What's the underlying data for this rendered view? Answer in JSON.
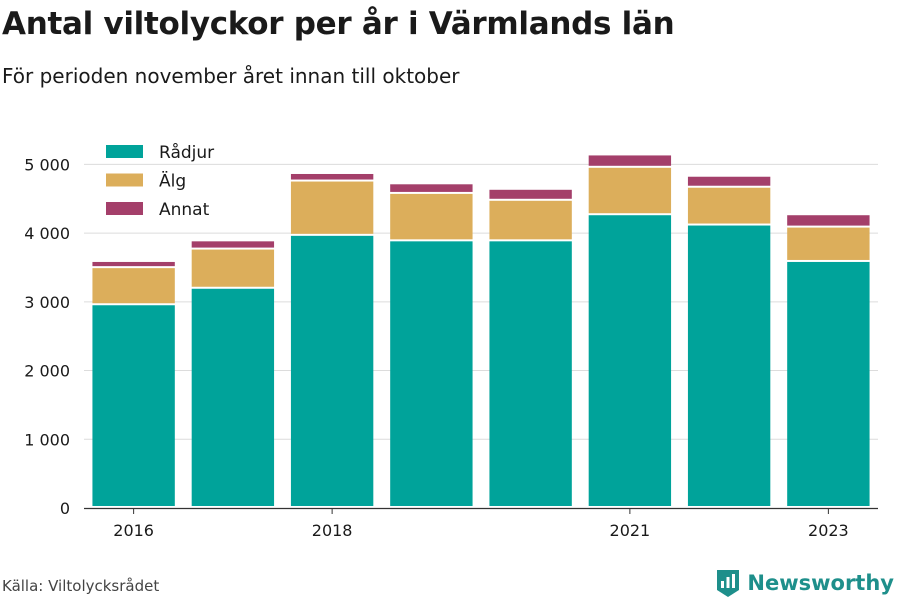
{
  "title": "Antal viltolyckor per år i Värmlands län",
  "subtitle": "För perioden november året innan till oktober",
  "source": "Källa: Viltolycksrådet",
  "brand": "Newsworthy",
  "colors": {
    "radjur": "#00a39a",
    "alg": "#dcae5b",
    "annat": "#a43f6a",
    "grid": "#dcdcdc",
    "brand": "#1e8f8b"
  },
  "chart_data": {
    "type": "bar",
    "stacked": true,
    "categories": [
      "2016",
      "2017",
      "2018",
      "2019",
      "2020",
      "2021",
      "2022",
      "2023"
    ],
    "x_tick_labels": [
      "2016",
      "",
      "2018",
      "",
      "",
      "2021",
      "",
      "2023"
    ],
    "series": [
      {
        "name": "Rådjur",
        "values": [
          2950,
          3190,
          3960,
          3880,
          3880,
          4260,
          4110,
          3580
        ]
      },
      {
        "name": "Älg",
        "values": [
          540,
          570,
          790,
          690,
          590,
          690,
          550,
          500
        ]
      },
      {
        "name": "Annat",
        "values": [
          90,
          120,
          110,
          140,
          160,
          180,
          160,
          180
        ]
      }
    ],
    "ylim": [
      0,
      5500
    ],
    "y_ticks": [
      0,
      1000,
      2000,
      3000,
      4000,
      5000
    ],
    "y_tick_labels": [
      "0",
      "1 000",
      "2 000",
      "3 000",
      "4 000",
      "5 000"
    ],
    "grid": true,
    "legend_position": "top-left"
  }
}
